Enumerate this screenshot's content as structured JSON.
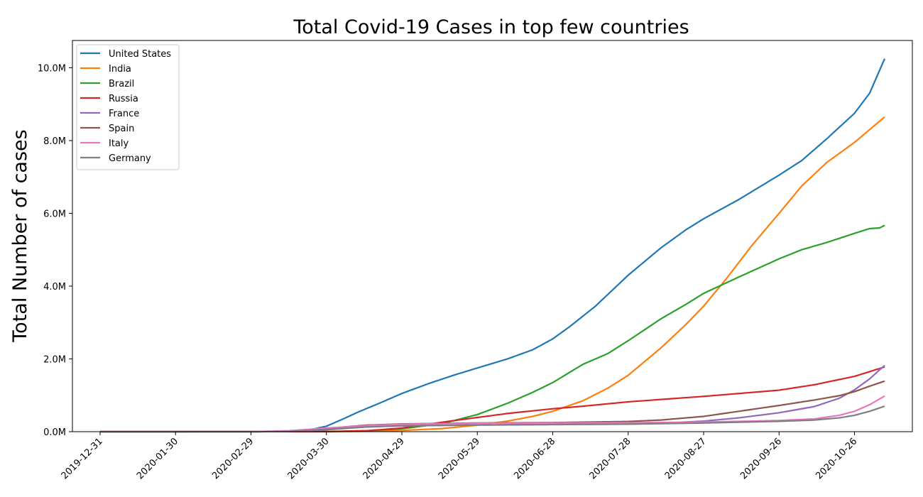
{
  "chart_data": {
    "type": "line",
    "title": "Total Covid-19 Cases in top few countries",
    "xlabel": "",
    "ylabel": "Total Number of cases",
    "x_start": "2019-12-31",
    "x_end": "2020-11-07",
    "xlim": [
      "2019-12-20",
      "2020-11-18"
    ],
    "x_ticks": [
      "2019-12-31",
      "2020-01-30",
      "2020-02-29",
      "2020-03-30",
      "2020-04-29",
      "2020-05-29",
      "2020-06-28",
      "2020-07-28",
      "2020-08-27",
      "2020-09-26",
      "2020-10-26"
    ],
    "ylim": [
      0,
      10750000
    ],
    "y_ticks": [
      0,
      2000000,
      4000000,
      6000000,
      8000000,
      10000000
    ],
    "y_tick_labels": [
      "0.0M",
      "2.0M",
      "4.0M",
      "6.0M",
      "8.0M",
      "10.0M"
    ],
    "grid": false,
    "legend_position": "top-left",
    "series": [
      {
        "name": "United States",
        "color": "#1f77b4",
        "points": [
          [
            "2019-12-31",
            0
          ],
          [
            "2020-02-29",
            0
          ],
          [
            "2020-03-15",
            3000
          ],
          [
            "2020-03-22",
            30000
          ],
          [
            "2020-03-30",
            150000
          ],
          [
            "2020-04-05",
            330000
          ],
          [
            "2020-04-12",
            550000
          ],
          [
            "2020-04-20",
            780000
          ],
          [
            "2020-04-29",
            1050000
          ],
          [
            "2020-05-10",
            1330000
          ],
          [
            "2020-05-20",
            1560000
          ],
          [
            "2020-05-29",
            1750000
          ],
          [
            "2020-06-10",
            2000000
          ],
          [
            "2020-06-20",
            2250000
          ],
          [
            "2020-06-28",
            2550000
          ],
          [
            "2020-07-05",
            2900000
          ],
          [
            "2020-07-15",
            3450000
          ],
          [
            "2020-07-28",
            4300000
          ],
          [
            "2020-08-10",
            5050000
          ],
          [
            "2020-08-20",
            5550000
          ],
          [
            "2020-08-27",
            5850000
          ],
          [
            "2020-09-10",
            6380000
          ],
          [
            "2020-09-26",
            7050000
          ],
          [
            "2020-10-05",
            7450000
          ],
          [
            "2020-10-15",
            8050000
          ],
          [
            "2020-10-26",
            8750000
          ],
          [
            "2020-11-01",
            9300000
          ],
          [
            "2020-11-07",
            10250000
          ]
        ]
      },
      {
        "name": "India",
        "color": "#ff7f0e",
        "points": [
          [
            "2019-12-31",
            0
          ],
          [
            "2020-03-30",
            1500
          ],
          [
            "2020-04-15",
            12000
          ],
          [
            "2020-04-29",
            35000
          ],
          [
            "2020-05-15",
            85000
          ],
          [
            "2020-05-29",
            180000
          ],
          [
            "2020-06-10",
            290000
          ],
          [
            "2020-06-20",
            420000
          ],
          [
            "2020-06-28",
            560000
          ],
          [
            "2020-07-10",
            850000
          ],
          [
            "2020-07-20",
            1200000
          ],
          [
            "2020-07-28",
            1550000
          ],
          [
            "2020-08-10",
            2300000
          ],
          [
            "2020-08-20",
            2950000
          ],
          [
            "2020-08-27",
            3450000
          ],
          [
            "2020-09-05",
            4200000
          ],
          [
            "2020-09-15",
            5100000
          ],
          [
            "2020-09-26",
            6000000
          ],
          [
            "2020-10-05",
            6750000
          ],
          [
            "2020-10-15",
            7400000
          ],
          [
            "2020-10-26",
            7950000
          ],
          [
            "2020-11-07",
            8650000
          ]
        ]
      },
      {
        "name": "Brazil",
        "color": "#2ca02c",
        "points": [
          [
            "2019-12-31",
            0
          ],
          [
            "2020-03-30",
            5000
          ],
          [
            "2020-04-15",
            28000
          ],
          [
            "2020-04-29",
            80000
          ],
          [
            "2020-05-15",
            220000
          ],
          [
            "2020-05-29",
            470000
          ],
          [
            "2020-06-10",
            780000
          ],
          [
            "2020-06-20",
            1080000
          ],
          [
            "2020-06-28",
            1350000
          ],
          [
            "2020-07-10",
            1850000
          ],
          [
            "2020-07-20",
            2150000
          ],
          [
            "2020-07-28",
            2500000
          ],
          [
            "2020-08-10",
            3100000
          ],
          [
            "2020-08-20",
            3500000
          ],
          [
            "2020-08-27",
            3800000
          ],
          [
            "2020-09-10",
            4250000
          ],
          [
            "2020-09-26",
            4750000
          ],
          [
            "2020-10-05",
            5000000
          ],
          [
            "2020-10-15",
            5200000
          ],
          [
            "2020-10-26",
            5450000
          ],
          [
            "2020-11-01",
            5580000
          ],
          [
            "2020-11-05",
            5600000
          ],
          [
            "2020-11-07",
            5670000
          ]
        ]
      },
      {
        "name": "Russia",
        "color": "#d62728",
        "points": [
          [
            "2019-12-31",
            0
          ],
          [
            "2020-03-30",
            1800
          ],
          [
            "2020-04-15",
            25000
          ],
          [
            "2020-04-29",
            100000
          ],
          [
            "2020-05-15",
            260000
          ],
          [
            "2020-05-29",
            390000
          ],
          [
            "2020-06-10",
            500000
          ],
          [
            "2020-06-28",
            630000
          ],
          [
            "2020-07-10",
            700000
          ],
          [
            "2020-07-28",
            820000
          ],
          [
            "2020-08-27",
            970000
          ],
          [
            "2020-09-26",
            1140000
          ],
          [
            "2020-10-10",
            1290000
          ],
          [
            "2020-10-26",
            1520000
          ],
          [
            "2020-11-07",
            1780000
          ]
        ]
      },
      {
        "name": "France",
        "color": "#9467bd",
        "points": [
          [
            "2019-12-31",
            0
          ],
          [
            "2020-03-01",
            100
          ],
          [
            "2020-03-15",
            5000
          ],
          [
            "2020-03-30",
            52000
          ],
          [
            "2020-04-15",
            130000
          ],
          [
            "2020-04-29",
            165000
          ],
          [
            "2020-05-29",
            186000
          ],
          [
            "2020-06-28",
            200000
          ],
          [
            "2020-07-28",
            225000
          ],
          [
            "2020-08-15",
            250000
          ],
          [
            "2020-08-27",
            290000
          ],
          [
            "2020-09-10",
            380000
          ],
          [
            "2020-09-26",
            520000
          ],
          [
            "2020-10-10",
            690000
          ],
          [
            "2020-10-20",
            920000
          ],
          [
            "2020-10-26",
            1150000
          ],
          [
            "2020-11-01",
            1450000
          ],
          [
            "2020-11-05",
            1700000
          ],
          [
            "2020-11-07",
            1820000
          ]
        ]
      },
      {
        "name": "Spain",
        "color": "#8c564b",
        "points": [
          [
            "2019-12-31",
            0
          ],
          [
            "2020-03-05",
            300
          ],
          [
            "2020-03-15",
            8000
          ],
          [
            "2020-03-30",
            90000
          ],
          [
            "2020-04-15",
            180000
          ],
          [
            "2020-04-29",
            212000
          ],
          [
            "2020-05-29",
            239000
          ],
          [
            "2020-06-28",
            250000
          ],
          [
            "2020-07-28",
            280000
          ],
          [
            "2020-08-10",
            320000
          ],
          [
            "2020-08-27",
            420000
          ],
          [
            "2020-09-10",
            560000
          ],
          [
            "2020-09-26",
            720000
          ],
          [
            "2020-10-10",
            870000
          ],
          [
            "2020-10-20",
            990000
          ],
          [
            "2020-10-26",
            1100000
          ],
          [
            "2020-11-01",
            1250000
          ],
          [
            "2020-11-07",
            1390000
          ]
        ]
      },
      {
        "name": "Italy",
        "color": "#e377c2",
        "points": [
          [
            "2019-12-31",
            0
          ],
          [
            "2020-02-22",
            80
          ],
          [
            "2020-03-01",
            1700
          ],
          [
            "2020-03-15",
            25000
          ],
          [
            "2020-03-30",
            100000
          ],
          [
            "2020-04-15",
            165000
          ],
          [
            "2020-04-29",
            203000
          ],
          [
            "2020-05-29",
            231000
          ],
          [
            "2020-06-28",
            240000
          ],
          [
            "2020-07-28",
            247000
          ],
          [
            "2020-08-27",
            263000
          ],
          [
            "2020-09-26",
            307000
          ],
          [
            "2020-10-10",
            350000
          ],
          [
            "2020-10-20",
            450000
          ],
          [
            "2020-10-26",
            560000
          ],
          [
            "2020-11-01",
            740000
          ],
          [
            "2020-11-07",
            980000
          ]
        ]
      },
      {
        "name": "Germany",
        "color": "#7f7f7f",
        "points": [
          [
            "2019-12-31",
            0
          ],
          [
            "2020-03-01",
            130
          ],
          [
            "2020-03-15",
            5800
          ],
          [
            "2020-03-30",
            62000
          ],
          [
            "2020-04-15",
            130000
          ],
          [
            "2020-04-29",
            160000
          ],
          [
            "2020-05-29",
            181000
          ],
          [
            "2020-06-28",
            194000
          ],
          [
            "2020-07-28",
            207000
          ],
          [
            "2020-08-27",
            239000
          ],
          [
            "2020-09-26",
            285000
          ],
          [
            "2020-10-10",
            320000
          ],
          [
            "2020-10-20",
            380000
          ],
          [
            "2020-10-26",
            450000
          ],
          [
            "2020-11-01",
            560000
          ],
          [
            "2020-11-07",
            700000
          ]
        ]
      }
    ]
  }
}
